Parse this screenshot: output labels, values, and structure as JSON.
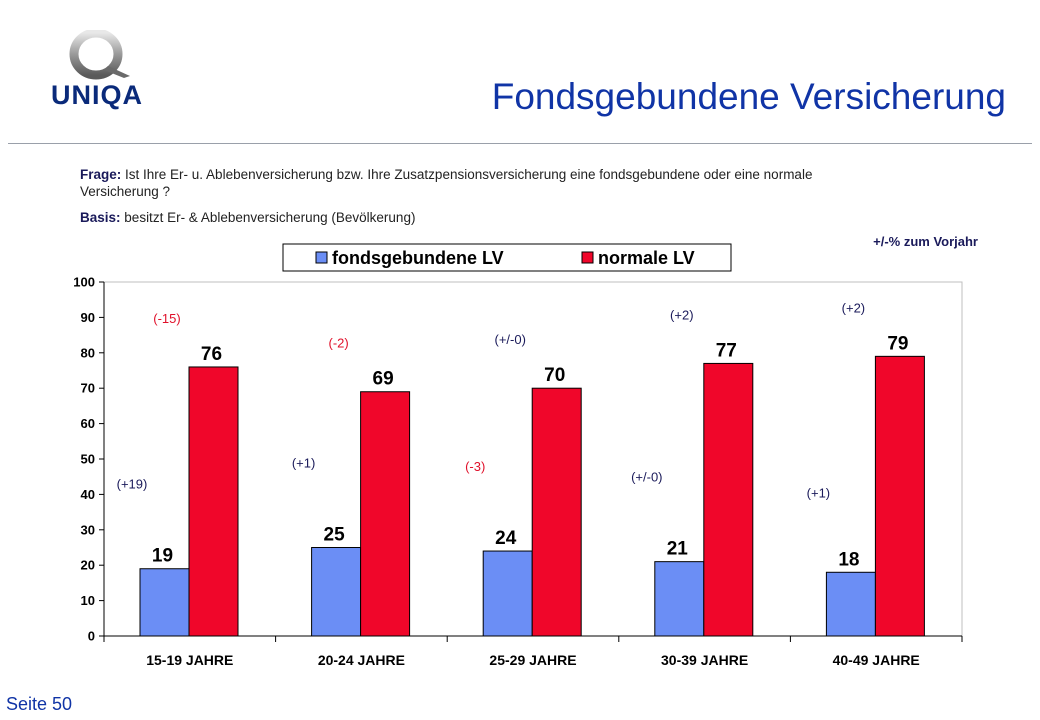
{
  "header": {
    "logo_text": "UNIQA",
    "title": "Fondsgebundene Versicherung"
  },
  "question": {
    "frage_label": "Frage:",
    "frage_text": "Ist Ihre Er- u. Ablebenversicherung bzw. Ihre Zusatzpensionsversicherung eine fondsgebundene oder eine normale Versicherung ?",
    "basis_label": "Basis:",
    "basis_text": "besitzt Er- & Ablebenversicherung (Bevölkerung)"
  },
  "note": "+/-% zum Vorjahr",
  "footer": {
    "page": "Seite 50"
  },
  "colors": {
    "fonds": "#6b8ef5",
    "normal": "#f0062a",
    "title": "#1034a6",
    "change_red": "#e0102a",
    "change_navy": "#1a1a5a"
  },
  "chart_data": {
    "type": "bar",
    "categories": [
      "15-19  JAHRE",
      "20-24  JAHRE",
      "25-29  JAHRE",
      "30-39  JAHRE",
      "40-49  JAHRE"
    ],
    "series": [
      {
        "name": "fondsgebundene LV",
        "values": [
          19,
          25,
          24,
          21,
          18
        ],
        "changes": [
          "(+19)",
          "(+1)",
          "(-3)",
          "(+/-0)",
          "(+1)"
        ],
        "change_colors": [
          "navy",
          "navy",
          "red",
          "navy",
          "navy"
        ]
      },
      {
        "name": "normale LV",
        "values": [
          76,
          69,
          70,
          77,
          79
        ],
        "changes": [
          "(-15)",
          "(-2)",
          "(+/-0)",
          "(+2)",
          "(+2)"
        ],
        "change_colors": [
          "red",
          "red",
          "navy",
          "navy",
          "navy"
        ]
      }
    ],
    "ylim": [
      0,
      100
    ],
    "yticks": [
      0,
      10,
      20,
      30,
      40,
      50,
      60,
      70,
      80,
      90,
      100
    ],
    "grid": false,
    "legend": "top-center"
  }
}
